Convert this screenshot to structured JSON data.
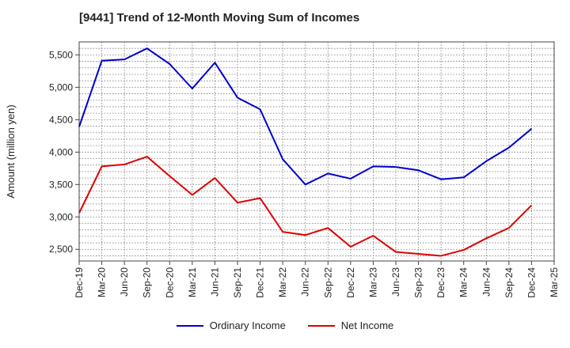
{
  "chart_data": {
    "type": "line",
    "title": "[9441]  Trend of 12-Month Moving Sum of Incomes",
    "xlabel": "",
    "ylabel": "Amount (million yen)",
    "ylim": [
      2320,
      5700
    ],
    "yticks": [
      2500,
      3000,
      3500,
      4000,
      4500,
      5000,
      5500
    ],
    "ytick_labels": [
      "2,500",
      "3,000",
      "3,500",
      "4,000",
      "4,500",
      "5,000",
      "5,500"
    ],
    "categories": [
      "Dec-19",
      "Mar-20",
      "Jun-20",
      "Sep-20",
      "Dec-20",
      "Mar-21",
      "Jun-21",
      "Sep-21",
      "Dec-21",
      "Mar-22",
      "Jun-22",
      "Sep-22",
      "Dec-22",
      "Mar-23",
      "Jun-23",
      "Sep-23",
      "Dec-23",
      "Mar-24",
      "Jun-24",
      "Sep-24",
      "Dec-24",
      "Mar-25"
    ],
    "series": [
      {
        "name": "Ordinary Income",
        "color": "#0000cc",
        "values": [
          4390,
          5410,
          5430,
          5600,
          5360,
          4980,
          5380,
          4840,
          4660,
          3890,
          3500,
          3670,
          3590,
          3780,
          3770,
          3720,
          3580,
          3610,
          3860,
          4070,
          4360,
          null
        ]
      },
      {
        "name": "Net Income",
        "color": "#dd0000",
        "values": [
          3060,
          3780,
          3810,
          3930,
          3630,
          3340,
          3600,
          3220,
          3290,
          2770,
          2720,
          2830,
          2540,
          2710,
          2460,
          2430,
          2400,
          2490,
          2670,
          2830,
          3180,
          null
        ]
      }
    ],
    "grid": true,
    "legend_position": "bottom-center"
  }
}
